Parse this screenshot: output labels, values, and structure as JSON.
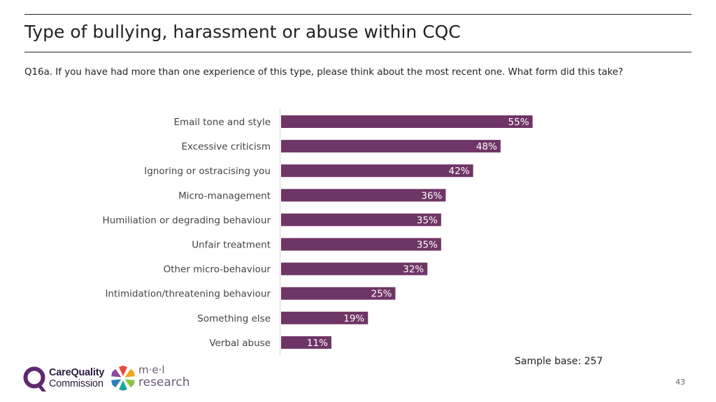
{
  "header": {
    "title": "Type of bullying, harassment or abuse within CQC",
    "question": "Q16a. If you have had more than one experience of this type, please think about the most recent one. What form did this take?"
  },
  "chart_data": {
    "type": "bar",
    "orientation": "horizontal",
    "categories": [
      "Email tone and style",
      "Excessive criticism",
      "Ignoring or ostracising you",
      "Micro-management",
      "Humiliation or degrading behaviour",
      "Unfair treatment",
      "Other micro-behaviour",
      "Intimidation/threatening behaviour",
      "Something else",
      "Verbal abuse"
    ],
    "values": [
      55,
      48,
      42,
      36,
      35,
      35,
      32,
      25,
      19,
      11
    ],
    "value_suffix": "%",
    "xlim": [
      0,
      100
    ],
    "bar_color": "#6f3566",
    "label_color": "#ffffff",
    "title": "",
    "xlabel": "",
    "ylabel": "",
    "grid": false,
    "legend": "none"
  },
  "footer": {
    "sample_base": "Sample base: 257",
    "page_number": "43",
    "cqc_logo_line1": "CareQuality",
    "cqc_logo_line2": "Commission",
    "mel_logo_line1": "m·e·l",
    "mel_logo_line2": "research"
  },
  "colors": {
    "cqc_purple": "#5e2a6e",
    "mel_petals": [
      "#e84a3c",
      "#f3a21a",
      "#8cc43f",
      "#1fa5a0",
      "#2a7fc1",
      "#8e4a9e"
    ]
  }
}
